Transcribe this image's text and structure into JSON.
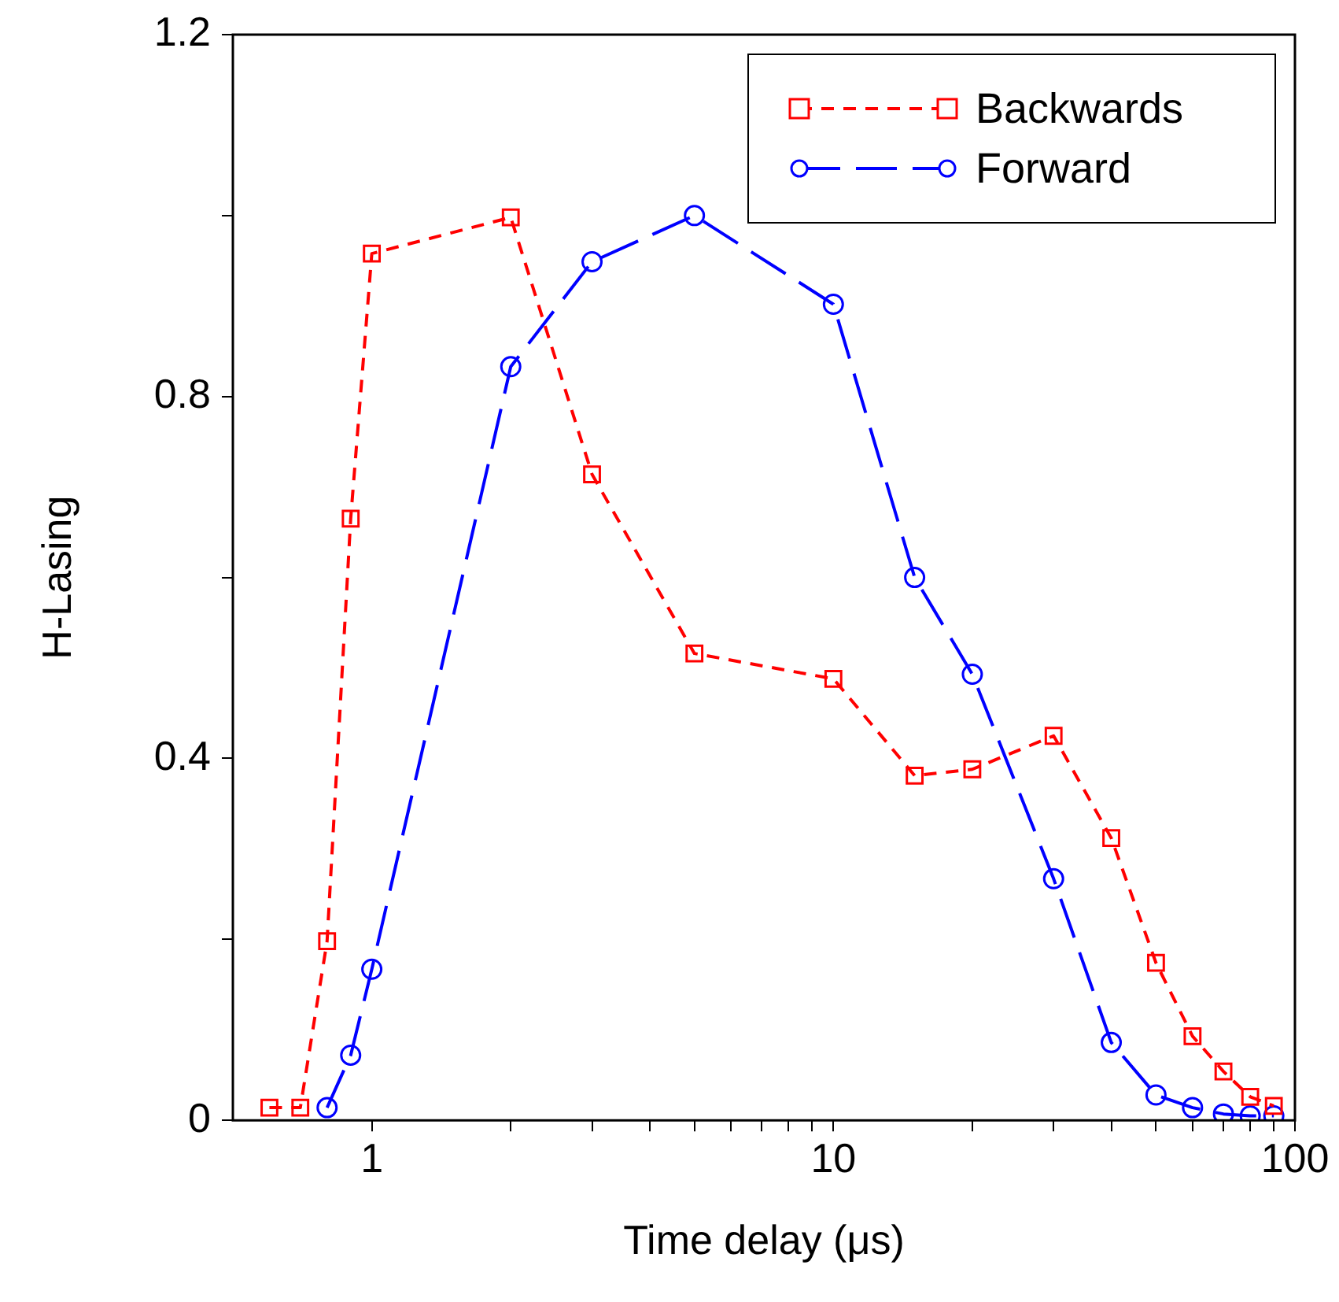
{
  "chart_data": {
    "type": "line",
    "xlabel": "Time delay (μs)",
    "ylabel": "H-Lasing",
    "log": "x",
    "grid": false,
    "legend": "top right",
    "xlim": [
      0.5,
      100
    ],
    "ylim": [
      0,
      1.2
    ],
    "xticks": [
      1,
      {
        "value": 2,
        "label": null
      },
      {
        "value": 3,
        "label": null
      },
      {
        "value": 4,
        "label": null
      },
      {
        "value": 5,
        "label": null
      },
      {
        "value": 6,
        "label": null
      },
      {
        "value": 7,
        "label": null
      },
      {
        "value": 8,
        "label": null
      },
      {
        "value": 9,
        "label": null
      },
      10,
      {
        "value": 20,
        "label": null
      },
      {
        "value": 30,
        "label": null
      },
      {
        "value": 40,
        "label": null
      },
      {
        "value": 50,
        "label": null
      },
      {
        "value": 60,
        "label": null
      },
      {
        "value": 70,
        "label": null
      },
      {
        "value": 80,
        "label": null
      },
      {
        "value": 90,
        "label": null
      },
      100
    ],
    "yticks": [
      0,
      {
        "value": 0.2,
        "label": null
      },
      0.4,
      {
        "value": 0.6,
        "label": null
      },
      0.8,
      {
        "value": 1,
        "label": null
      },
      1.2
    ],
    "series": [
      {
        "name": "Backwards",
        "color": "#ff0000",
        "marker": "square",
        "line_style": "dashed",
        "x": [
          0.6,
          0.7,
          0.8,
          0.9,
          1,
          2,
          3,
          5,
          10,
          15,
          20,
          30,
          40,
          50,
          60,
          70,
          80,
          90
        ],
        "values": [
          0.014,
          0.014,
          0.198,
          0.665,
          0.958,
          0.998,
          0.714,
          0.516,
          0.488,
          0.381,
          0.388,
          0.425,
          0.312,
          0.174,
          0.093,
          0.054,
          0.026,
          0.016
        ]
      },
      {
        "name": "Forward",
        "color": "#0000ff",
        "marker": "circle",
        "line_style": "dashed",
        "x": [
          0.8,
          0.9,
          1,
          2,
          3,
          5,
          10,
          15,
          20,
          30,
          40,
          50,
          60,
          70,
          80,
          90
        ],
        "values": [
          0.014,
          0.072,
          0.167,
          0.833,
          0.949,
          1.0,
          0.902,
          0.6,
          0.493,
          0.267,
          0.086,
          0.028,
          0.014,
          0.007,
          0.005,
          0.005
        ]
      }
    ]
  }
}
